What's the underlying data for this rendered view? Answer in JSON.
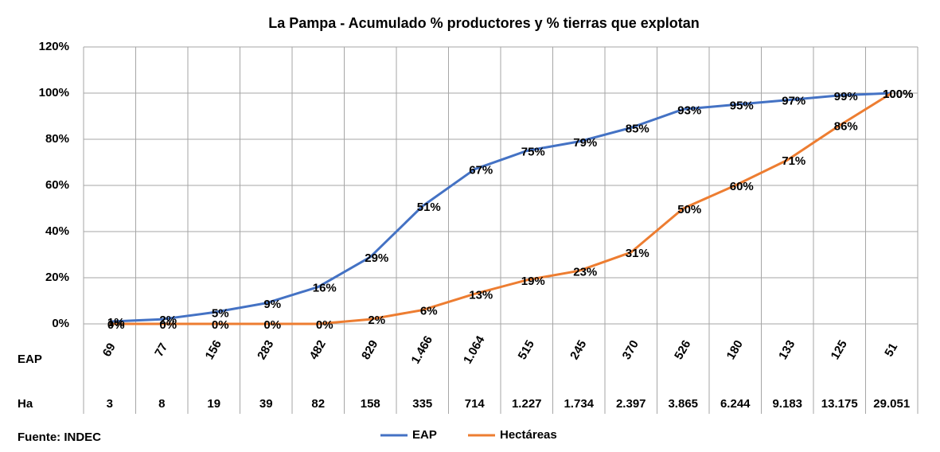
{
  "chart_data": {
    "type": "line",
    "title": "La Pampa - Acumulado  % productores y % tierras que explotan",
    "source": "Fuente: INDEC",
    "categories": [
      null,
      null,
      null,
      null,
      null,
      null,
      null,
      null,
      null,
      null,
      null,
      null,
      null,
      null,
      null,
      null
    ],
    "ylim": [
      0,
      120
    ],
    "yticks": [
      {
        "value": 0,
        "label": "0%"
      },
      {
        "value": 20,
        "label": "20%"
      },
      {
        "value": 40,
        "label": "40%"
      },
      {
        "value": 60,
        "label": "60%"
      },
      {
        "value": 80,
        "label": "80%"
      },
      {
        "value": 100,
        "label": "100%"
      },
      {
        "value": 120,
        "label": "120%"
      }
    ],
    "grid": true,
    "legend": "bottom",
    "series": [
      {
        "name": "EAP",
        "color": "#4472c4",
        "values": [
          1,
          2,
          5,
          9,
          16,
          29,
          51,
          67,
          75,
          79,
          85,
          93,
          95,
          97,
          99,
          100
        ],
        "value_labels": [
          "1%",
          "2%",
          "5%",
          "9%",
          "16%",
          "29%",
          "51%",
          "67%",
          "75%",
          "79%",
          "85%",
          "93%",
          "95%",
          "97%",
          "99%",
          "100%"
        ]
      },
      {
        "name": "Hectáreas",
        "color": "#ed7d31",
        "values": [
          0,
          0,
          0,
          0,
          0,
          2,
          6,
          13,
          19,
          23,
          31,
          50,
          60,
          71,
          86,
          100
        ],
        "value_labels": [
          "0%",
          "0%",
          "0%",
          "0%",
          "0%",
          "2%",
          "6%",
          "13%",
          "19%",
          "23%",
          "31%",
          "50%",
          "60%",
          "71%",
          "86%",
          "100%"
        ]
      }
    ],
    "data_table": [
      {
        "label": "EAP",
        "values": [
          "69",
          "77",
          "156",
          "283",
          "482",
          "829",
          "1.466",
          "1.064",
          "515",
          "245",
          "370",
          "526",
          "180",
          "133",
          "125",
          "51"
        ]
      },
      {
        "label": "Ha",
        "values": [
          "3",
          "8",
          "19",
          "39",
          "82",
          "158",
          "335",
          "714",
          "1.227",
          "1.734",
          "2.397",
          "3.865",
          "6.244",
          "9.183",
          "13.175",
          "29.051"
        ]
      }
    ]
  }
}
